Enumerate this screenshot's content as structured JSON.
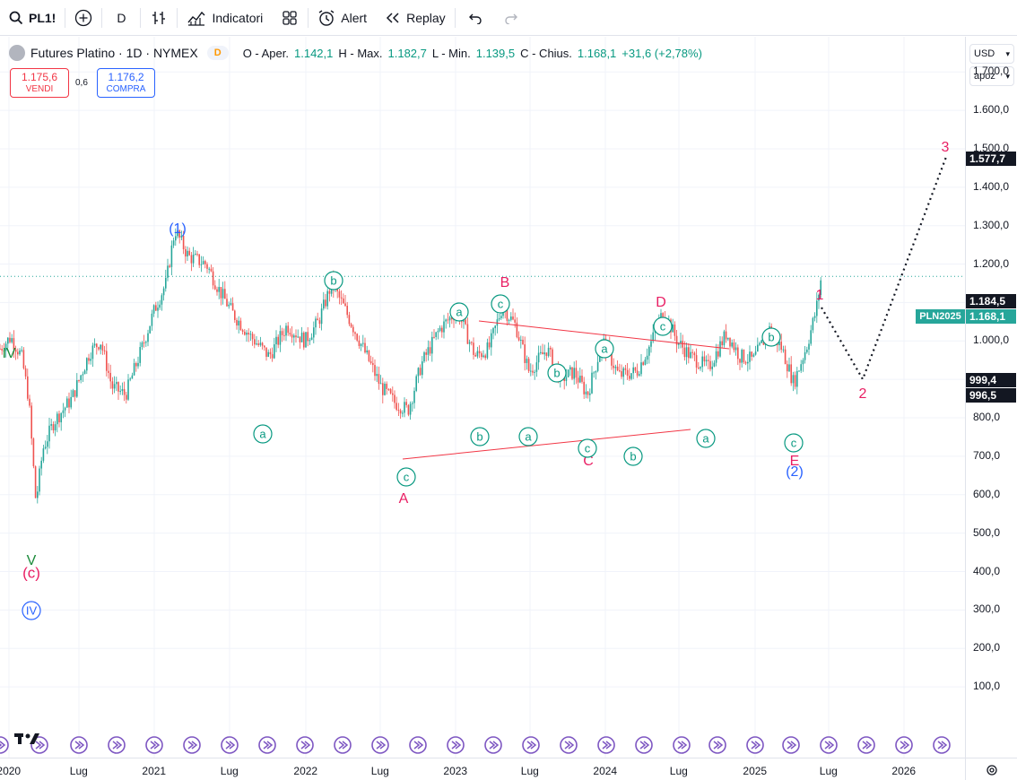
{
  "toolbar": {
    "symbol": "PL1!",
    "interval": "D",
    "indicators_label": "Indicatori",
    "alert_label": "Alert",
    "replay_label": "Replay"
  },
  "legend": {
    "title": "Futures Platino · 1D · NYMEX",
    "data_badge": "D",
    "open_label": "O - Aper.",
    "open": "1.142,1",
    "high_label": "H - Max.",
    "high": "1.182,7",
    "low_label": "L - Min.",
    "low": "1.139,5",
    "close_label": "C - Chius.",
    "close": "1.168,1",
    "change": "+31,6 (+2,78%)"
  },
  "trade": {
    "sell_price": "1.175,6",
    "sell_label": "VENDI",
    "spread": "0,6",
    "buy_price": "1.176,2",
    "buy_label": "COMPRA"
  },
  "price_axis": {
    "currency": "USD",
    "aggregation": "apoz",
    "ticks": [
      "1.700,0",
      "1.600,0",
      "1.500,0",
      "1.400,0",
      "1.300,0",
      "1.200,0",
      "1.100,0",
      "1.000,0",
      "900,0",
      "800,0",
      "700,0",
      "600,0",
      "500,0",
      "400,0",
      "300,0",
      "200,0",
      "100,0"
    ],
    "tag_target": "1.577,7",
    "tag_high": "1.184,5",
    "tag_close": "1.168,1",
    "tag_a": "999,4",
    "tag_b": "996,5",
    "series_tag": "PLN2025"
  },
  "time_axis": {
    "labels": [
      "2020",
      "Lug",
      "2021",
      "Lug",
      "2022",
      "Lug",
      "2023",
      "Lug",
      "2024",
      "Lug",
      "2025",
      "Lug",
      "2026"
    ]
  },
  "waves": {
    "IV_left": "IV",
    "V": "V",
    "c_paren": "(c)",
    "IV_circle": "IV",
    "w1": "(1)",
    "w2": "(2)",
    "A": "A",
    "B": "B",
    "C": "C",
    "D": "D",
    "E": "E",
    "n1": "1",
    "n2": "2",
    "n3": "3",
    "a": "a",
    "b": "b",
    "c": "c"
  },
  "colors": {
    "up": "#26a69a",
    "down": "#ef5350",
    "blue_wave": "#2962ff",
    "red_wave": "#e91e63",
    "green_wave": "#1b8a3a",
    "teal_label": "#089981"
  }
}
